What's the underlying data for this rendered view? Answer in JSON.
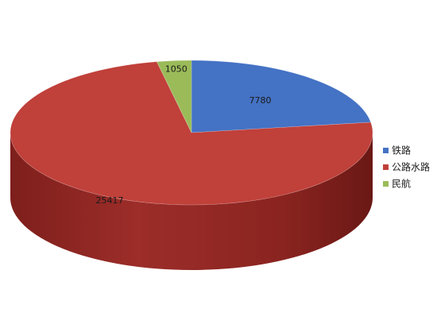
{
  "chart_data": {
    "type": "pie",
    "style": "3d",
    "title": "",
    "series": [
      {
        "label": "铁路",
        "value": 7780,
        "color": "#4472C4"
      },
      {
        "label": "公路水路",
        "value": 25417,
        "color": "#C0403A"
      },
      {
        "label": "民航",
        "value": 1050,
        "color": "#9BBB59"
      }
    ],
    "start": "12 o'clock",
    "direction": "clockwise",
    "legend_position": "right"
  }
}
